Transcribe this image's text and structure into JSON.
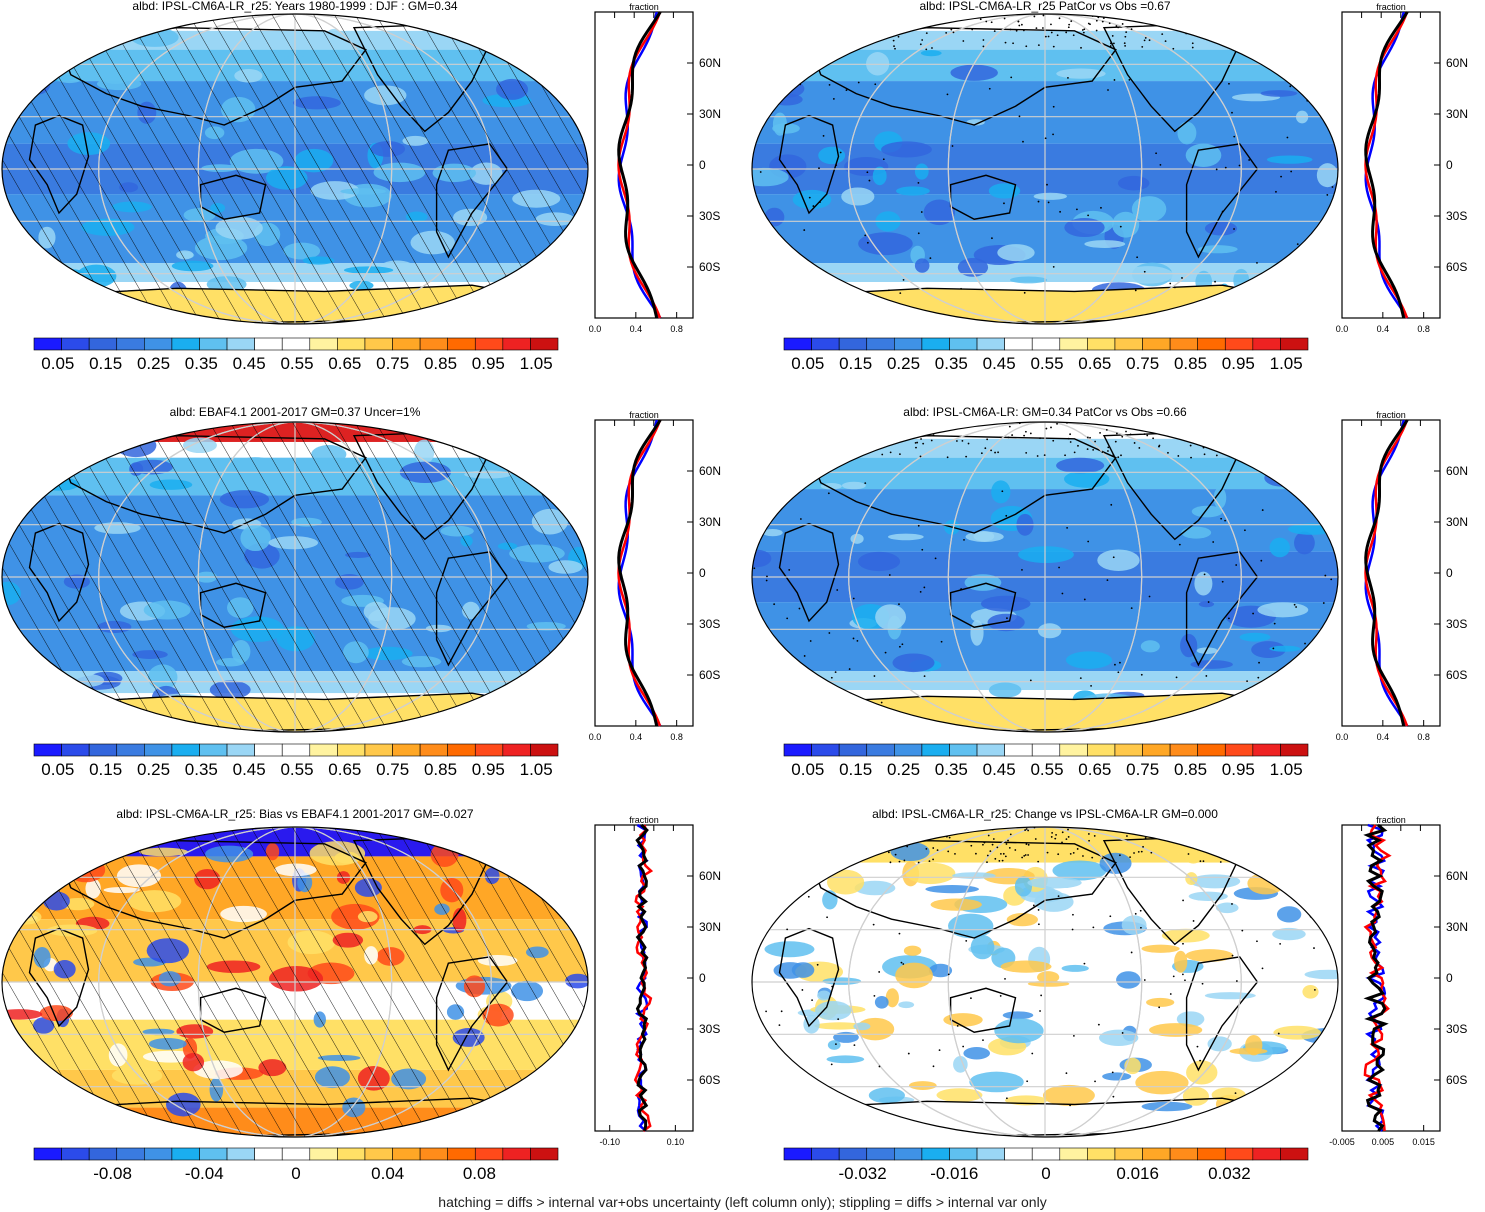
{
  "footer": "hatching = diffs > internal var+obs uncertainty (left column only); stippling = diffs > internal var only",
  "profile": {
    "xlabel": "fraction",
    "lat_labels": [
      "60N",
      "30N",
      "0",
      "30S",
      "60S"
    ]
  },
  "panels": [
    {
      "id": "p1",
      "title": "albd: IPSL-CM6A-LR_r25: Years 1980-1999 : DJF : GM=0.34",
      "overlay": "hatch",
      "scheme": "abs",
      "cbar_labels": [
        "0.05",
        "0.15",
        "0.25",
        "0.35",
        "0.45",
        "0.55",
        "0.65",
        "0.75",
        "0.85",
        "0.95",
        "1.05"
      ],
      "profile_ticks": [
        "0.0",
        "0.4",
        "0.8"
      ]
    },
    {
      "id": "p2",
      "title": "albd: IPSL-CM6A-LR_r25 PatCor vs Obs =0.67",
      "overlay": "stipple",
      "scheme": "abs",
      "cbar_labels": [
        "0.05",
        "0.15",
        "0.25",
        "0.35",
        "0.45",
        "0.55",
        "0.65",
        "0.75",
        "0.85",
        "0.95",
        "1.05"
      ],
      "profile_ticks": [
        "0.0",
        "0.4",
        "0.8"
      ]
    },
    {
      "id": "p3",
      "title": "albd: EBAF4.1 2001-2017 GM=0.37 Uncer=1%",
      "overlay": "hatch",
      "scheme": "obs",
      "cbar_labels": [
        "0.05",
        "0.15",
        "0.25",
        "0.35",
        "0.45",
        "0.55",
        "0.65",
        "0.75",
        "0.85",
        "0.95",
        "1.05"
      ],
      "profile_ticks": [
        "0.0",
        "0.4",
        "0.8"
      ]
    },
    {
      "id": "p4",
      "title": "albd: IPSL-CM6A-LR: GM=0.34 PatCor vs Obs =0.66",
      "overlay": "stipple",
      "scheme": "abs",
      "cbar_labels": [
        "0.05",
        "0.15",
        "0.25",
        "0.35",
        "0.45",
        "0.55",
        "0.65",
        "0.75",
        "0.85",
        "0.95",
        "1.05"
      ],
      "profile_ticks": [
        "0.0",
        "0.4",
        "0.8"
      ]
    },
    {
      "id": "p5",
      "title": "albd: IPSL-CM6A-LR_r25: Bias vs EBAF4.1 2001-2017 GM=-0.027",
      "overlay": "hatch",
      "scheme": "bias",
      "cbar_labels": [
        "-0.08",
        "-0.04",
        "0",
        "0.04",
        "0.08"
      ],
      "profile_ticks": [
        "-0.10",
        "0.10"
      ]
    },
    {
      "id": "p6",
      "title": "albd: IPSL-CM6A-LR_r25: Change vs IPSL-CM6A-LR GM=0.000",
      "overlay": "stipple",
      "scheme": "change",
      "cbar_labels": [
        "-0.032",
        "-0.016",
        "0",
        "0.016",
        "0.032"
      ],
      "profile_ticks": [
        "-0.005",
        "0.005",
        "0.015"
      ]
    }
  ],
  "colorbar_colors": [
    "#1a1aff",
    "#2b4bea",
    "#3366dd",
    "#3a7be0",
    "#3f92e6",
    "#1aaef0",
    "#5fc0f0",
    "#9ad6f5",
    "#ffffff",
    "#ffffff",
    "#fff3a0",
    "#ffe066",
    "#ffc84a",
    "#ffa726",
    "#ff8c1a",
    "#ff6a00",
    "#ff4a1a",
    "#ee2222",
    "#cc1111"
  ],
  "profile_series_colors": {
    "model": "#ff0000",
    "obs": "#0000ff",
    "mean": "#000000"
  }
}
